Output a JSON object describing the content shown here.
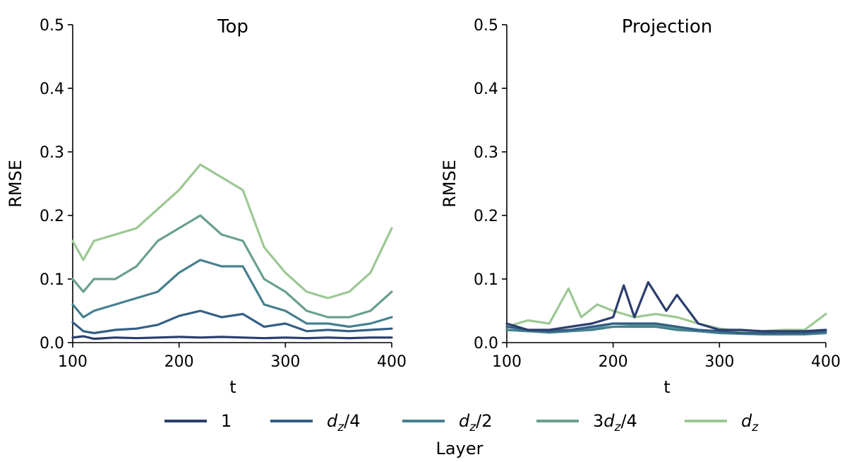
{
  "chart_data": {
    "type": "line",
    "x_range": [
      100,
      400
    ],
    "ylim": [
      0,
      0.5
    ],
    "x_ticks": [
      "100",
      "200",
      "300",
      "400"
    ],
    "y_ticks": [
      "0.0",
      "0.1",
      "0.2",
      "0.3",
      "0.4",
      "0.5"
    ],
    "xlabel": "t",
    "ylabel": "RMSE",
    "legend": {
      "title": "Layer",
      "placement": "bottom-center",
      "entries": [
        {
          "label": "1",
          "color": "#2c3e6e"
        },
        {
          "label": "d_z/4",
          "color": "#335f86"
        },
        {
          "label": "d_z/2",
          "color": "#46808f"
        },
        {
          "label": "3d_z/4",
          "color": "#6a9f92"
        },
        {
          "label": "d_z",
          "color": "#9cc893"
        }
      ]
    },
    "panels": [
      {
        "title": "Top",
        "series": [
          {
            "name": "1",
            "color": "#2c3e6e",
            "x": [
              100,
              110,
              120,
              140,
              160,
              180,
              200,
              220,
              240,
              260,
              280,
              300,
              320,
              340,
              360,
              380,
              400
            ],
            "y": [
              0.008,
              0.01,
              0.006,
              0.008,
              0.007,
              0.008,
              0.009,
              0.008,
              0.009,
              0.008,
              0.007,
              0.008,
              0.007,
              0.008,
              0.007,
              0.008,
              0.008
            ]
          },
          {
            "name": "d_z/4",
            "color": "#335f86",
            "x": [
              100,
              110,
              120,
              140,
              160,
              180,
              200,
              220,
              240,
              260,
              280,
              300,
              320,
              340,
              360,
              380,
              400
            ],
            "y": [
              0.032,
              0.018,
              0.015,
              0.02,
              0.022,
              0.028,
              0.042,
              0.05,
              0.04,
              0.045,
              0.025,
              0.03,
              0.018,
              0.02,
              0.018,
              0.02,
              0.022
            ]
          },
          {
            "name": "d_z/2",
            "color": "#46808f",
            "x": [
              100,
              110,
              120,
              140,
              160,
              180,
              200,
              220,
              240,
              260,
              280,
              300,
              320,
              340,
              360,
              380,
              400
            ],
            "y": [
              0.06,
              0.04,
              0.05,
              0.06,
              0.07,
              0.08,
              0.11,
              0.13,
              0.12,
              0.12,
              0.06,
              0.05,
              0.03,
              0.03,
              0.025,
              0.03,
              0.04
            ]
          },
          {
            "name": "3d_z/4",
            "color": "#6a9f92",
            "x": [
              100,
              110,
              120,
              140,
              160,
              180,
              200,
              220,
              240,
              260,
              280,
              300,
              320,
              340,
              360,
              380,
              400
            ],
            "y": [
              0.1,
              0.08,
              0.1,
              0.1,
              0.12,
              0.16,
              0.18,
              0.2,
              0.17,
              0.16,
              0.1,
              0.08,
              0.05,
              0.04,
              0.04,
              0.05,
              0.08
            ]
          },
          {
            "name": "d_z",
            "color": "#9cc893",
            "x": [
              100,
              110,
              120,
              140,
              160,
              180,
              200,
              220,
              240,
              260,
              280,
              300,
              320,
              340,
              360,
              380,
              400
            ],
            "y": [
              0.16,
              0.13,
              0.16,
              0.17,
              0.18,
              0.21,
              0.24,
              0.28,
              0.26,
              0.24,
              0.15,
              0.11,
              0.08,
              0.07,
              0.08,
              0.11,
              0.18
            ]
          }
        ]
      },
      {
        "title": "Projection",
        "series": [
          {
            "name": "1",
            "color": "#2c3e6e",
            "x": [
              100,
              120,
              140,
              160,
              180,
              200,
              210,
              220,
              233,
              250,
              260,
              280,
              300,
              320,
              340,
              360,
              380,
              400
            ],
            "y": [
              0.03,
              0.02,
              0.02,
              0.025,
              0.03,
              0.04,
              0.09,
              0.04,
              0.095,
              0.05,
              0.075,
              0.03,
              0.02,
              0.02,
              0.018,
              0.018,
              0.018,
              0.02
            ]
          },
          {
            "name": "d_z/4",
            "color": "#335f86",
            "x": [
              100,
              120,
              140,
              160,
              180,
              200,
              220,
              240,
              260,
              280,
              300,
              320,
              340,
              360,
              380,
              400
            ],
            "y": [
              0.025,
              0.02,
              0.018,
              0.02,
              0.025,
              0.03,
              0.03,
              0.03,
              0.025,
              0.02,
              0.018,
              0.015,
              0.015,
              0.015,
              0.015,
              0.018
            ]
          },
          {
            "name": "d_z/2",
            "color": "#46808f",
            "x": [
              100,
              120,
              140,
              160,
              180,
              200,
              220,
              240,
              260,
              280,
              300,
              320,
              340,
              360,
              380,
              400
            ],
            "y": [
              0.02,
              0.018,
              0.016,
              0.018,
              0.02,
              0.025,
              0.025,
              0.025,
              0.02,
              0.018,
              0.015,
              0.014,
              0.013,
              0.013,
              0.013,
              0.015
            ]
          },
          {
            "name": "3d_z/4",
            "color": "#6a9f92",
            "x": [
              100,
              120,
              140,
              160,
              180,
              200,
              220,
              240,
              260,
              280,
              300,
              320,
              340,
              360,
              380,
              400
            ],
            "y": [
              0.02,
              0.018,
              0.016,
              0.018,
              0.022,
              0.03,
              0.028,
              0.028,
              0.022,
              0.018,
              0.016,
              0.014,
              0.013,
              0.013,
              0.014,
              0.018
            ]
          },
          {
            "name": "d_z",
            "color": "#9cc893",
            "x": [
              100,
              120,
              140,
              158,
              170,
              185,
              200,
              220,
              240,
              260,
              280,
              300,
              320,
              340,
              360,
              380,
              400
            ],
            "y": [
              0.025,
              0.035,
              0.03,
              0.085,
              0.04,
              0.06,
              0.05,
              0.04,
              0.045,
              0.04,
              0.03,
              0.022,
              0.018,
              0.018,
              0.02,
              0.02,
              0.045
            ]
          }
        ]
      }
    ]
  }
}
